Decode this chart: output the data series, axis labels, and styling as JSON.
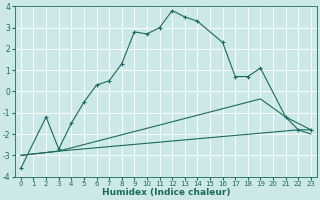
{
  "xlabel": "Humidex (Indice chaleur)",
  "background_color": "#cde8e8",
  "grid_color": "#b0d0d0",
  "line_color": "#1a6b5a",
  "xlim": [
    -0.5,
    23.5
  ],
  "ylim": [
    -4,
    4
  ],
  "yticks": [
    -4,
    -3,
    -2,
    -1,
    0,
    1,
    2,
    3,
    4
  ],
  "xticks": [
    0,
    1,
    2,
    3,
    4,
    5,
    6,
    7,
    8,
    9,
    10,
    11,
    12,
    13,
    14,
    15,
    16,
    17,
    18,
    19,
    20,
    21,
    22,
    23
  ],
  "series1_x": [
    0,
    2,
    3,
    4,
    5,
    6,
    7,
    8,
    9,
    10,
    11,
    12,
    13,
    14,
    16,
    17,
    18,
    19,
    21,
    22,
    23
  ],
  "series1_y": [
    -3.6,
    -1.2,
    -2.7,
    -1.5,
    -0.5,
    0.3,
    0.5,
    1.3,
    2.8,
    2.7,
    3.0,
    3.8,
    3.5,
    3.3,
    2.3,
    0.7,
    0.7,
    1.1,
    -1.2,
    -1.8,
    -1.8
  ],
  "series2_x": [
    0,
    3,
    19,
    21,
    22,
    23
  ],
  "series2_y": [
    -3.0,
    -2.8,
    -0.35,
    -1.2,
    -1.5,
    -1.8
  ],
  "series3_x": [
    0,
    3,
    22,
    23
  ],
  "series3_y": [
    -3.0,
    -2.8,
    -1.8,
    -2.0
  ],
  "marker": "+"
}
